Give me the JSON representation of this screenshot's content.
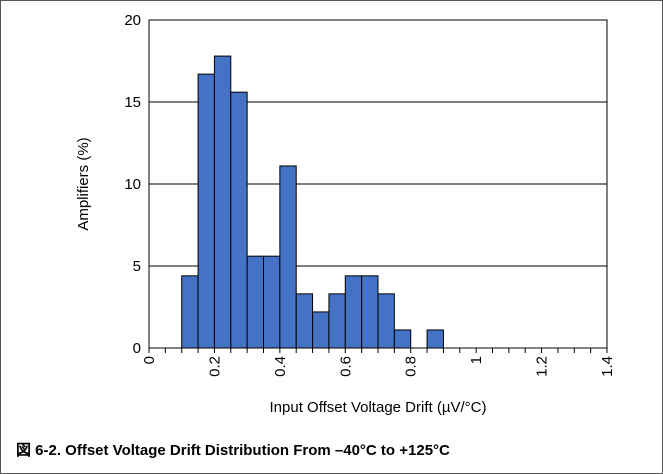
{
  "caption": "図 6-2. Offset Voltage Drift Distribution From –40°C to +125°C",
  "chart_data": {
    "type": "bar",
    "title": "",
    "xlabel": "Input Offset Voltage Drift (µV/°C)",
    "ylabel": "Amplifiers (%)",
    "xlim": [
      0,
      1.4
    ],
    "ylim": [
      0,
      20
    ],
    "x_ticks": [
      "0",
      "0.2",
      "0.4",
      "0.6",
      "0.8",
      "1",
      "1.2",
      "1.4"
    ],
    "y_ticks": [
      "0",
      "5",
      "10",
      "15",
      "20"
    ],
    "bin_width": 0.05,
    "bins": [
      {
        "start": 0.1,
        "end": 0.15,
        "value": 4.4
      },
      {
        "start": 0.15,
        "end": 0.2,
        "value": 16.7
      },
      {
        "start": 0.2,
        "end": 0.25,
        "value": 17.8
      },
      {
        "start": 0.25,
        "end": 0.3,
        "value": 15.6
      },
      {
        "start": 0.3,
        "end": 0.35,
        "value": 5.6
      },
      {
        "start": 0.35,
        "end": 0.4,
        "value": 5.6
      },
      {
        "start": 0.4,
        "end": 0.45,
        "value": 11.1
      },
      {
        "start": 0.45,
        "end": 0.5,
        "value": 3.3
      },
      {
        "start": 0.5,
        "end": 0.55,
        "value": 2.2
      },
      {
        "start": 0.55,
        "end": 0.6,
        "value": 3.3
      },
      {
        "start": 0.6,
        "end": 0.65,
        "value": 4.4
      },
      {
        "start": 0.65,
        "end": 0.7,
        "value": 4.4
      },
      {
        "start": 0.7,
        "end": 0.75,
        "value": 3.3
      },
      {
        "start": 0.75,
        "end": 0.8,
        "value": 1.1
      },
      {
        "start": 0.85,
        "end": 0.9,
        "value": 1.1
      }
    ],
    "grid": {
      "horizontal": true,
      "vertical": false
    },
    "bar_color": "#4472c4",
    "bar_edge_color": "#000000"
  }
}
